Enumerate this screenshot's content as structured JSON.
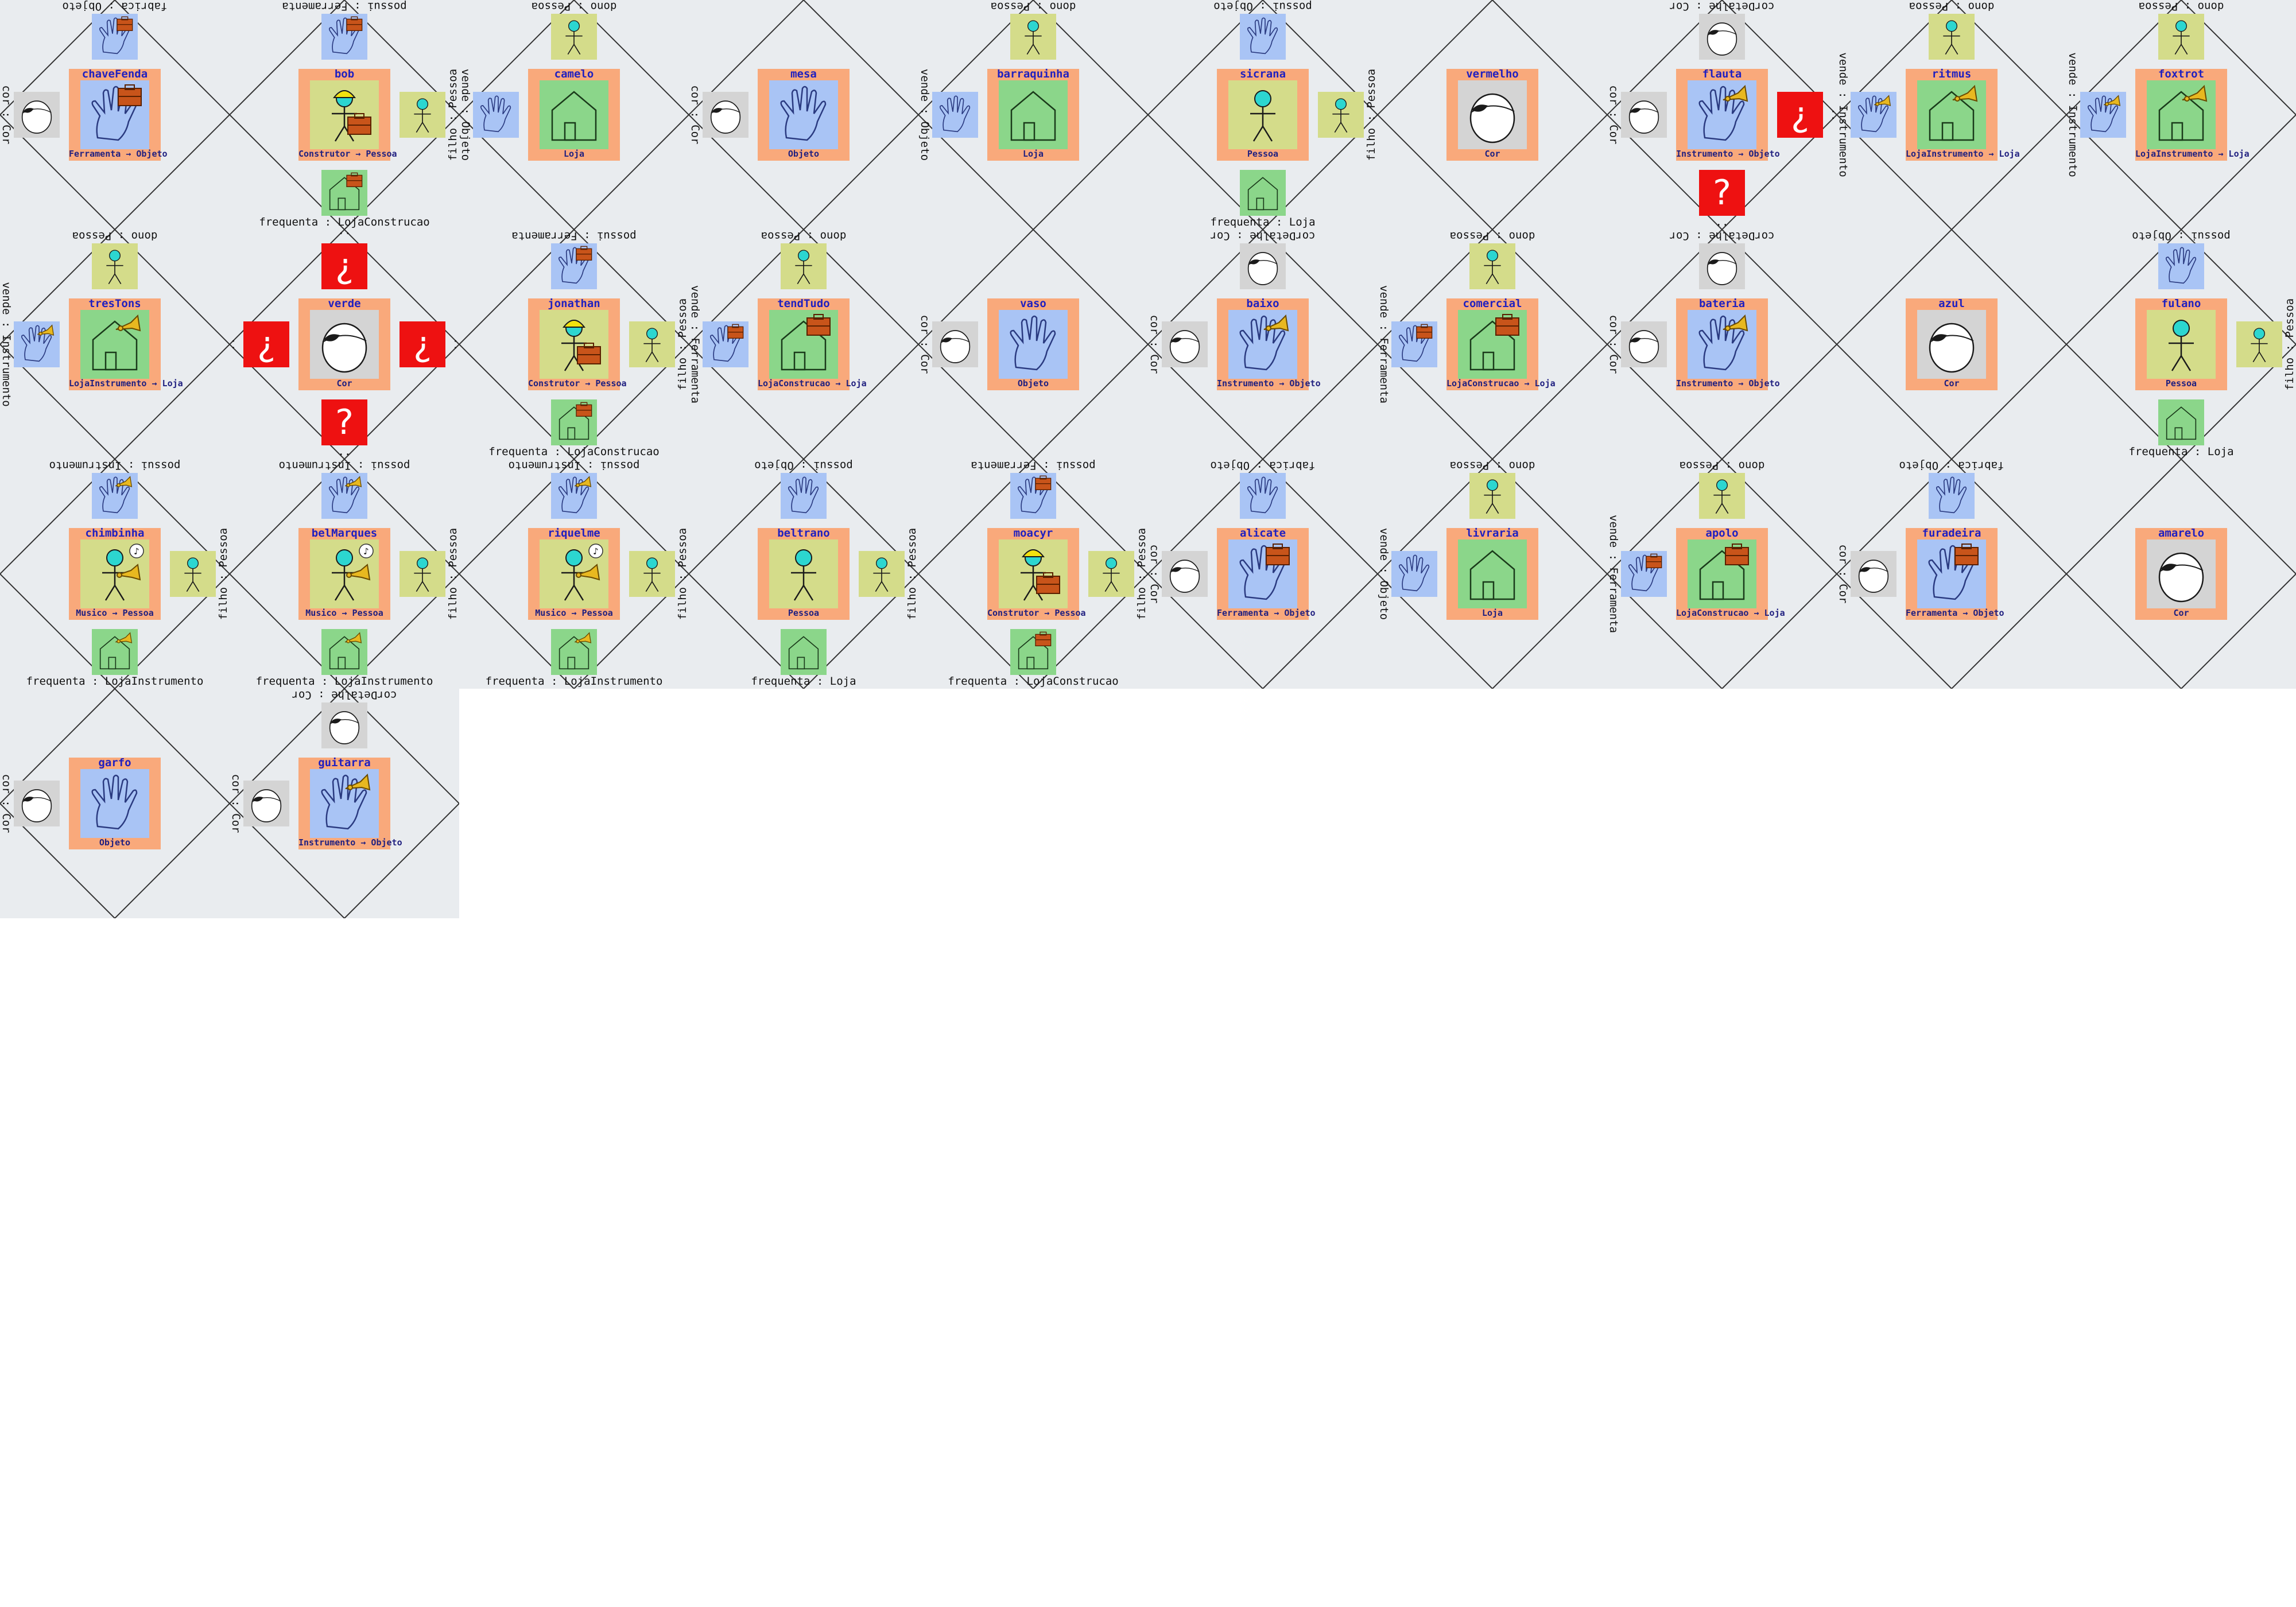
{
  "cells": [
    {
      "name": "chaveFenda",
      "type": "Ferramenta → Objeto",
      "kind": "objeto",
      "icon": "hand-toolbox",
      "top": {
        "label": "fabrica : Objeto",
        "kind": "objeto",
        "icon": "hand-toolbox"
      },
      "left": {
        "label": "cor : Cor",
        "kind": "cor",
        "icon": "paint"
      }
    },
    {
      "name": "bob",
      "type": "Construtor → Pessoa",
      "kind": "pessoa",
      "icon": "builder",
      "top": {
        "label": "possui : Ferramenta",
        "kind": "objeto",
        "icon": "hand-toolbox"
      },
      "right": {
        "label": "filho : Pessoa",
        "kind": "pessoa",
        "icon": "person"
      },
      "bottom": {
        "label": "frequenta : LojaConstrucao",
        "kind": "loja",
        "icon": "shop-toolbox"
      }
    },
    {
      "name": "camelo",
      "type": "Loja",
      "kind": "loja",
      "icon": "shop",
      "top": {
        "label": "dono : Pessoa",
        "kind": "pessoa",
        "icon": "person"
      },
      "left": {
        "label": "vende : Objeto",
        "kind": "objeto",
        "icon": "hand"
      }
    },
    {
      "name": "mesa",
      "type": "Objeto",
      "kind": "objeto",
      "icon": "hand",
      "left": {
        "label": "cor : Cor",
        "kind": "cor",
        "icon": "paint"
      }
    },
    {
      "name": "barraquinha",
      "type": "Loja",
      "kind": "loja",
      "icon": "shop",
      "top": {
        "label": "dono : Pessoa",
        "kind": "pessoa",
        "icon": "person"
      },
      "left": {
        "label": "vende : Objeto",
        "kind": "objeto",
        "icon": "hand"
      }
    },
    {
      "name": "sicrana",
      "type": "Pessoa",
      "kind": "pessoa",
      "icon": "person",
      "top": {
        "label": "possui : Objeto",
        "kind": "objeto",
        "icon": "hand"
      },
      "right": {
        "label": "filho : Pessoa",
        "kind": "pessoa",
        "icon": "person"
      },
      "bottom": {
        "label": "frequenta : Loja",
        "kind": "loja",
        "icon": "shop"
      }
    },
    {
      "name": "vermelho",
      "type": "Cor",
      "kind": "cor",
      "icon": "paint"
    },
    {
      "name": "flauta",
      "type": "Instrumento → Objeto",
      "kind": "objeto",
      "icon": "hand-horn",
      "top": {
        "label": "corDetalhe : Cor",
        "kind": "cor",
        "icon": "paint"
      },
      "left": {
        "label": "cor : Cor",
        "kind": "cor",
        "icon": "paint"
      },
      "right": {
        "label": "..",
        "kind": "q",
        "icon": "¿"
      },
      "bottom": {
        "label": "..",
        "kind": "q",
        "icon": "?"
      }
    },
    {
      "name": "ritmus",
      "type": "LojaInstrumento → Loja",
      "kind": "loja",
      "icon": "shop-horn",
      "top": {
        "label": "dono : Pessoa",
        "kind": "pessoa",
        "icon": "person"
      },
      "left": {
        "label": "vende : Instrumento",
        "kind": "objeto",
        "icon": "hand-horn"
      }
    },
    {
      "name": "foxtrot",
      "type": "LojaInstrumento → Loja",
      "kind": "loja",
      "icon": "shop-horn",
      "top": {
        "label": "dono : Pessoa",
        "kind": "pessoa",
        "icon": "person"
      },
      "left": {
        "label": "vende : Instrumento",
        "kind": "objeto",
        "icon": "hand-horn"
      }
    },
    {
      "name": "tresTons",
      "type": "LojaInstrumento → Loja",
      "kind": "loja",
      "icon": "shop-horn",
      "top": {
        "label": "dono : Pessoa",
        "kind": "pessoa",
        "icon": "person"
      },
      "left": {
        "label": "vende : Instrumento",
        "kind": "objeto",
        "icon": "hand-horn"
      }
    },
    {
      "name": "verde",
      "type": "Cor",
      "kind": "cor",
      "icon": "paint",
      "top": {
        "label": "..",
        "kind": "q",
        "icon": "¿"
      },
      "left": {
        "label": "..",
        "kind": "q",
        "icon": "¿"
      },
      "right": {
        "label": "..",
        "kind": "q",
        "icon": "¿"
      },
      "bottom": {
        "label": "..",
        "kind": "q",
        "icon": "?"
      }
    },
    {
      "name": "jonathan",
      "type": "Construtor → Pessoa",
      "kind": "pessoa",
      "icon": "builder",
      "top": {
        "label": "possui : Ferramenta",
        "kind": "objeto",
        "icon": "hand-toolbox"
      },
      "right": {
        "label": "filho : Pessoa",
        "kind": "pessoa",
        "icon": "person"
      },
      "bottom": {
        "label": "frequenta : LojaConstrucao",
        "kind": "loja",
        "icon": "shop-toolbox"
      }
    },
    {
      "name": "tendTudo",
      "type": "LojaConstrucao → Loja",
      "kind": "loja",
      "icon": "shop-toolbox",
      "top": {
        "label": "dono : Pessoa",
        "kind": "pessoa",
        "icon": "person"
      },
      "left": {
        "label": "vende : Ferramenta",
        "kind": "objeto",
        "icon": "hand-toolbox"
      }
    },
    {
      "name": "vaso",
      "type": "Objeto",
      "kind": "objeto",
      "icon": "hand",
      "left": {
        "label": "cor : Cor",
        "kind": "cor",
        "icon": "paint"
      }
    },
    {
      "name": "baixo",
      "type": "Instrumento → Objeto",
      "kind": "objeto",
      "icon": "hand-horn",
      "top": {
        "label": "corDetalhe : Cor",
        "kind": "cor",
        "icon": "paint"
      },
      "left": {
        "label": "cor : Cor",
        "kind": "cor",
        "icon": "paint"
      }
    },
    {
      "name": "comercial",
      "type": "LojaConstrucao → Loja",
      "kind": "loja",
      "icon": "shop-toolbox",
      "top": {
        "label": "dono : Pessoa",
        "kind": "pessoa",
        "icon": "person"
      },
      "left": {
        "label": "vende : Ferramenta",
        "kind": "objeto",
        "icon": "hand-toolbox"
      }
    },
    {
      "name": "bateria",
      "type": "Instrumento → Objeto",
      "kind": "objeto",
      "icon": "hand-horn",
      "top": {
        "label": "corDetalhe : Cor",
        "kind": "cor",
        "icon": "paint"
      },
      "left": {
        "label": "cor : Cor",
        "kind": "cor",
        "icon": "paint"
      }
    },
    {
      "name": "azul",
      "type": "Cor",
      "kind": "cor",
      "icon": "paint"
    },
    {
      "name": "fulano",
      "type": "Pessoa",
      "kind": "pessoa",
      "icon": "person",
      "top": {
        "label": "possui : Objeto",
        "kind": "objeto",
        "icon": "hand"
      },
      "right": {
        "label": "filho : Pessoa",
        "kind": "pessoa",
        "icon": "person"
      },
      "bottom": {
        "label": "frequenta : Loja",
        "kind": "loja",
        "icon": "shop"
      }
    },
    {
      "name": "chimbinha",
      "type": "Musico → Pessoa",
      "kind": "pessoa",
      "icon": "musician",
      "top": {
        "label": "possui : Instrumento",
        "kind": "objeto",
        "icon": "hand-horn"
      },
      "right": {
        "label": "filho : Pessoa",
        "kind": "pessoa",
        "icon": "person"
      },
      "bottom": {
        "label": "frequenta : LojaInstrumento",
        "kind": "loja",
        "icon": "shop-horn"
      }
    },
    {
      "name": "belMarques",
      "type": "Musico → Pessoa",
      "kind": "pessoa",
      "icon": "musician",
      "top": {
        "label": "possui : Instrumento",
        "kind": "objeto",
        "icon": "hand-horn"
      },
      "right": {
        "label": "filho : Pessoa",
        "kind": "pessoa",
        "icon": "person"
      },
      "bottom": {
        "label": "frequenta : LojaInstrumento",
        "kind": "loja",
        "icon": "shop-horn"
      }
    },
    {
      "name": "riquelme",
      "type": "Musico → Pessoa",
      "kind": "pessoa",
      "icon": "musician",
      "top": {
        "label": "possui : Instrumento",
        "kind": "objeto",
        "icon": "hand-horn"
      },
      "right": {
        "label": "filho : Pessoa",
        "kind": "pessoa",
        "icon": "person"
      },
      "bottom": {
        "label": "frequenta : LojaInstrumento",
        "kind": "loja",
        "icon": "shop-horn"
      }
    },
    {
      "name": "beltrano",
      "type": "Pessoa",
      "kind": "pessoa",
      "icon": "person",
      "top": {
        "label": "possui : Objeto",
        "kind": "objeto",
        "icon": "hand"
      },
      "right": {
        "label": "filho : Pessoa",
        "kind": "pessoa",
        "icon": "person"
      },
      "bottom": {
        "label": "frequenta : Loja",
        "kind": "loja",
        "icon": "shop"
      }
    },
    {
      "name": "moacyr",
      "type": "Construtor → Pessoa",
      "kind": "pessoa",
      "icon": "builder",
      "top": {
        "label": "possui : Ferramenta",
        "kind": "objeto",
        "icon": "hand-toolbox"
      },
      "right": {
        "label": "filho : Pessoa",
        "kind": "pessoa",
        "icon": "person"
      },
      "bottom": {
        "label": "frequenta : LojaConstrucao",
        "kind": "loja",
        "icon": "shop-toolbox"
      }
    },
    {
      "name": "alicate",
      "type": "Ferramenta → Objeto",
      "kind": "objeto",
      "icon": "hand-toolbox",
      "top": {
        "label": "fabrica : Objeto",
        "kind": "objeto",
        "icon": "hand"
      },
      "left": {
        "label": "cor : Cor",
        "kind": "cor",
        "icon": "paint"
      }
    },
    {
      "name": "livraria",
      "type": "Loja",
      "kind": "loja",
      "icon": "shop",
      "top": {
        "label": "dono : Pessoa",
        "kind": "pessoa",
        "icon": "person"
      },
      "left": {
        "label": "vende : Objeto",
        "kind": "objeto",
        "icon": "hand"
      }
    },
    {
      "name": "apolo",
      "type": "LojaConstrucao → Loja",
      "kind": "loja",
      "icon": "shop-toolbox",
      "top": {
        "label": "dono : Pessoa",
        "kind": "pessoa",
        "icon": "person"
      },
      "left": {
        "label": "vende : Ferramenta",
        "kind": "objeto",
        "icon": "hand-toolbox"
      }
    },
    {
      "name": "furadeira",
      "type": "Ferramenta → Objeto",
      "kind": "objeto",
      "icon": "hand-toolbox",
      "top": {
        "label": "fabrica : Objeto",
        "kind": "objeto",
        "icon": "hand"
      },
      "left": {
        "label": "cor : Cor",
        "kind": "cor",
        "icon": "paint"
      }
    },
    {
      "name": "amarelo",
      "type": "Cor",
      "kind": "cor",
      "icon": "paint"
    },
    {
      "name": "garfo",
      "type": "Objeto",
      "kind": "objeto",
      "icon": "hand",
      "left": {
        "label": "cor : Cor",
        "kind": "cor",
        "icon": "paint"
      }
    },
    {
      "name": "guitarra",
      "type": "Instrumento → Objeto",
      "kind": "objeto",
      "icon": "hand-horn",
      "top": {
        "label": "corDetalhe : Cor",
        "kind": "cor",
        "icon": "paint"
      },
      "left": {
        "label": "cor : Cor",
        "kind": "cor",
        "icon": "paint"
      }
    }
  ]
}
